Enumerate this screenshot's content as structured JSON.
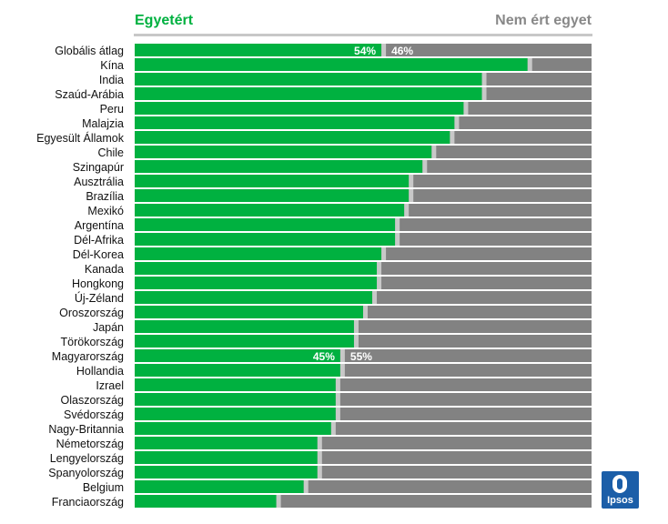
{
  "legend": {
    "agree": "Egyetért",
    "disagree": "Nem ért egyet"
  },
  "logo": {
    "text": "Ipsos"
  },
  "colors": {
    "agree": "#00b140",
    "disagree": "#828282",
    "separator": "#c8c8c8"
  },
  "chart_data": {
    "type": "bar",
    "orientation": "horizontal",
    "stacked": "100%",
    "categories": [
      "Globális átlag",
      "Kína",
      "India",
      "Szaúd-Arábia",
      "Peru",
      "Malajzia",
      "Egyesült Államok",
      "Chile",
      "Szingapúr",
      "Ausztrália",
      "Brazília",
      "Mexikó",
      "Argentína",
      "Dél-Afrika",
      "Dél-Korea",
      "Kanada",
      "Hongkong",
      "Új-Zéland",
      "Oroszország",
      "Japán",
      "Törökország",
      "Magyarország",
      "Hollandia",
      "Izrael",
      "Olaszország",
      "Svédország",
      "Nagy-Britannia",
      "Németország",
      "Lengyelország",
      "Spanyolország",
      "Belgium",
      "Franciaország"
    ],
    "series": [
      {
        "name": "Egyetért",
        "values": [
          54,
          86,
          76,
          76,
          72,
          70,
          69,
          65,
          63,
          60,
          60,
          59,
          57,
          57,
          54,
          53,
          53,
          52,
          50,
          48,
          48,
          45,
          45,
          44,
          44,
          44,
          43,
          40,
          40,
          40,
          37,
          31
        ]
      },
      {
        "name": "Nem ért egyet",
        "values": [
          46,
          14,
          24,
          24,
          28,
          30,
          31,
          35,
          37,
          40,
          40,
          41,
          43,
          43,
          46,
          47,
          47,
          48,
          50,
          52,
          52,
          55,
          55,
          56,
          56,
          56,
          57,
          60,
          60,
          60,
          63,
          69
        ]
      }
    ],
    "data_labels": [
      {
        "category": "Globális átlag",
        "agree": "54%",
        "disagree": "46%"
      },
      {
        "category": "Magyarország",
        "agree": "45%",
        "disagree": "55%"
      }
    ],
    "xlim": [
      0,
      100
    ],
    "legend_position": "top"
  }
}
